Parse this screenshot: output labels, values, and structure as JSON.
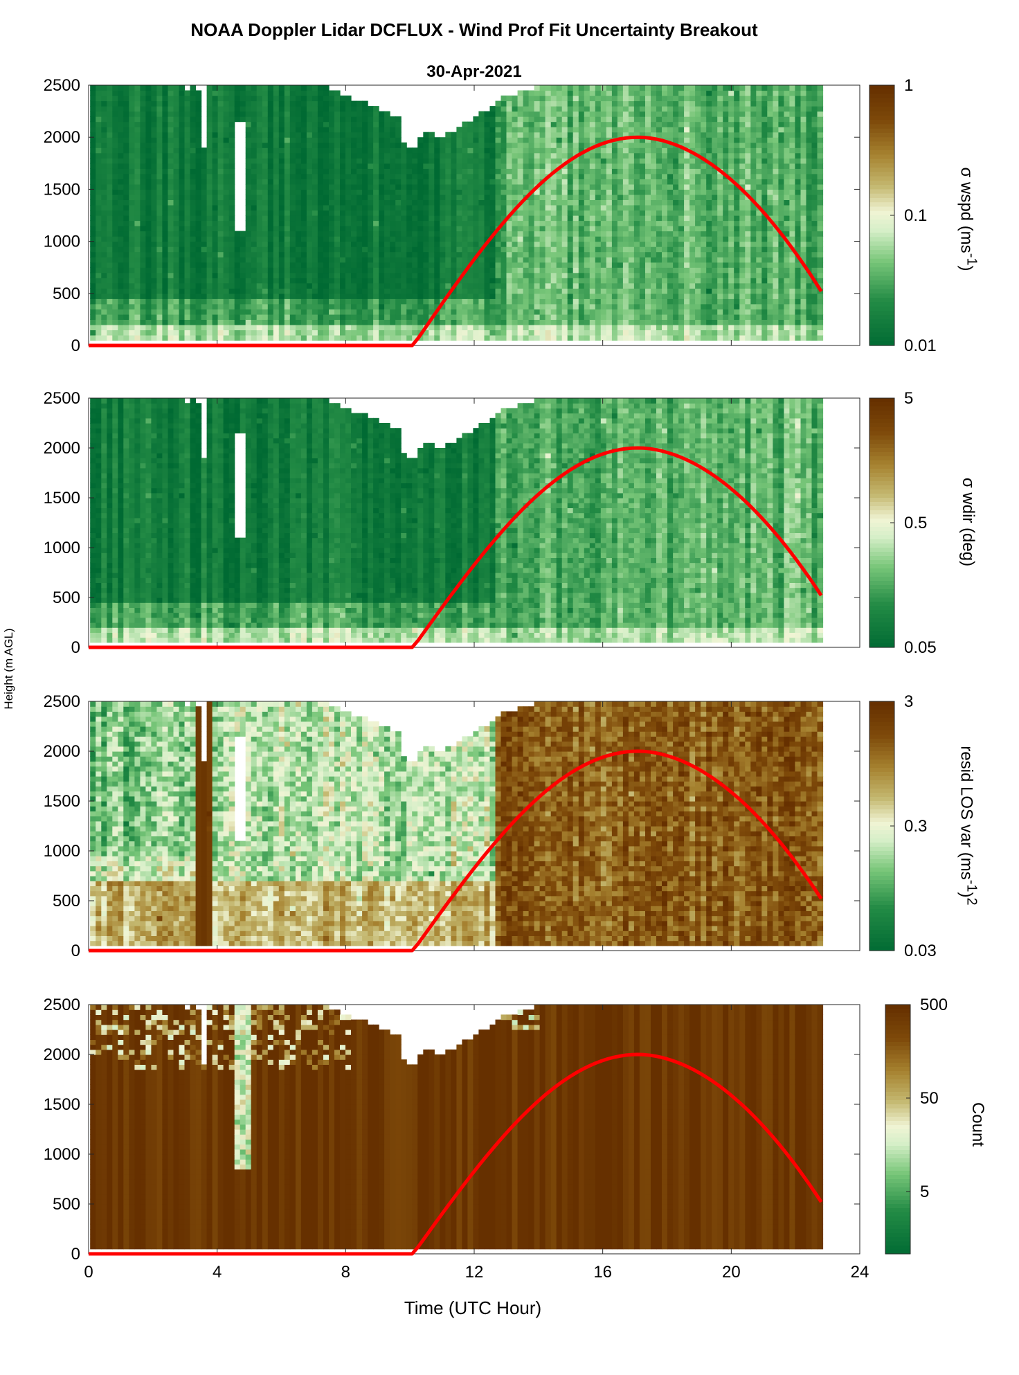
{
  "title": "NOAA Doppler Lidar DCFLUX - Wind Prof Fit Uncertainty Breakout",
  "subtitle": "30-Apr-2021",
  "shared_ylabel": "Height (m AGL)",
  "xlabel": "Time (UTC Hour)",
  "colors": {
    "curve": "#ff0000",
    "low": "#006a33",
    "mid": "#f2f5d2",
    "high": "#663000"
  },
  "chart_data": [
    {
      "type": "heatmap",
      "name": "wspd",
      "ylabel": "Height (m AGL)",
      "colorbar_label": "σ wspd (ms-1)",
      "colorbar_scale": "log",
      "colorbar_range": [
        0.01,
        1
      ],
      "colorbar_ticks": [
        "1",
        "0.1",
        "0.01"
      ],
      "xlim": [
        0,
        24
      ],
      "ylim": [
        0,
        2500
      ],
      "yticks": [
        "2500",
        "2000",
        "1500",
        "1000",
        "500",
        "0"
      ],
      "overlay_curve": {
        "x": [
          0,
          10,
          10.4,
          12,
          14,
          16,
          17,
          18,
          20,
          22.8
        ],
        "y": [
          0,
          0,
          60,
          900,
          1650,
          1960,
          2000,
          1960,
          1650,
          520
        ]
      }
    },
    {
      "type": "heatmap",
      "name": "wdir",
      "ylabel": "Height (m AGL)",
      "colorbar_label": "σ wdir (deg)",
      "colorbar_scale": "log",
      "colorbar_range": [
        0.05,
        5
      ],
      "colorbar_ticks": [
        "5",
        "0.5",
        "0.05"
      ],
      "xlim": [
        0,
        24
      ],
      "ylim": [
        0,
        2500
      ],
      "yticks": [
        "2500",
        "2000",
        "1500",
        "1000",
        "500",
        "0"
      ],
      "overlay_curve": {
        "x": [
          0,
          10,
          10.4,
          12,
          14,
          16,
          17,
          18,
          20,
          22.8
        ],
        "y": [
          0,
          0,
          60,
          900,
          1650,
          1960,
          2000,
          1960,
          1650,
          520
        ]
      }
    },
    {
      "type": "heatmap",
      "name": "resid",
      "ylabel": "Height (m AGL)",
      "colorbar_label": "resid LOS var (ms-1)2",
      "colorbar_scale": "log",
      "colorbar_range": [
        0.03,
        3
      ],
      "colorbar_ticks": [
        "3",
        "0.3",
        "0.03"
      ],
      "xlim": [
        0,
        24
      ],
      "ylim": [
        0,
        2500
      ],
      "yticks": [
        "2500",
        "2000",
        "1500",
        "1000",
        "500",
        "0"
      ],
      "overlay_curve": {
        "x": [
          0,
          10,
          10.4,
          12,
          14,
          16,
          17,
          18,
          20,
          22.8
        ],
        "y": [
          0,
          0,
          60,
          900,
          1650,
          1960,
          2000,
          1960,
          1650,
          520
        ]
      }
    },
    {
      "type": "heatmap",
      "name": "count",
      "ylabel": "Height (m AGL)",
      "xlabel": "Time (UTC Hour)",
      "colorbar_label": "Count",
      "colorbar_scale": "log",
      "colorbar_range": [
        0.5,
        500
      ],
      "colorbar_ticks": [
        "500",
        "50",
        "5"
      ],
      "xlim": [
        0,
        24
      ],
      "ylim": [
        0,
        2500
      ],
      "xticks": [
        "0",
        "4",
        "8",
        "12",
        "16",
        "20",
        "24"
      ],
      "yticks": [
        "2500",
        "2000",
        "1500",
        "1000",
        "500",
        "0"
      ],
      "overlay_curve": {
        "x": [
          0,
          10,
          10.4,
          12,
          14,
          16,
          17,
          18,
          20,
          22.8
        ],
        "y": [
          0,
          0,
          60,
          900,
          1650,
          1960,
          2000,
          1960,
          1650,
          520
        ]
      }
    }
  ]
}
